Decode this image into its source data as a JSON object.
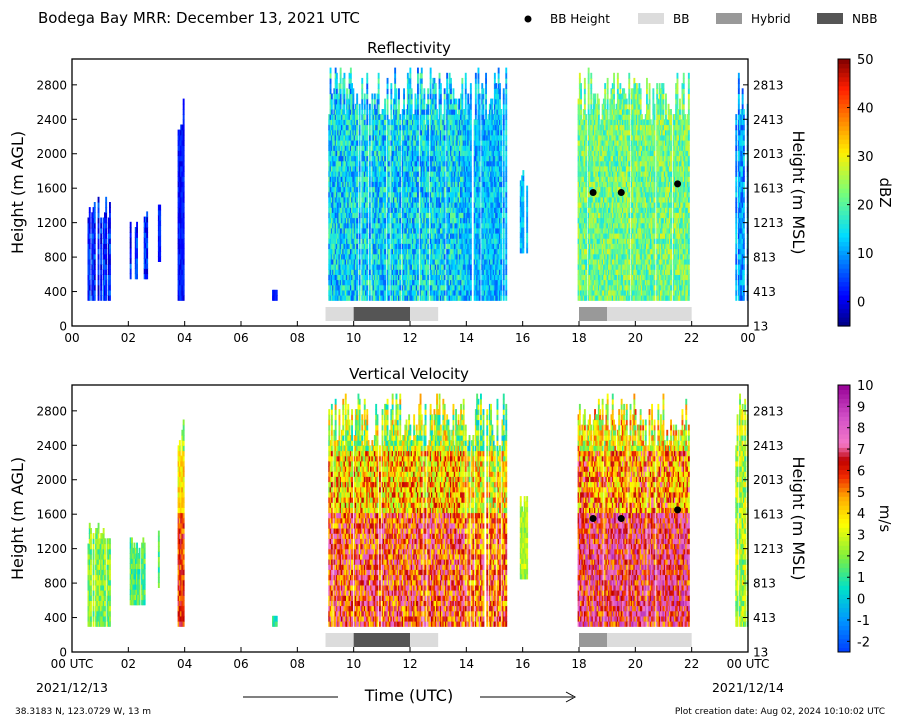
{
  "header": {
    "title": "Bodega Bay MRR:  December 13, 2021 UTC",
    "legend": [
      {
        "label": "BB Height",
        "marker": "dot",
        "color": "#000000"
      },
      {
        "label": "BB",
        "marker": "swatch",
        "color": "#dcdcdc"
      },
      {
        "label": "Hybrid",
        "marker": "swatch",
        "color": "#999999"
      },
      {
        "label": "NBB",
        "marker": "swatch",
        "color": "#555555"
      }
    ]
  },
  "footer": {
    "location": "38.3183 N, 123.0729 W, 13 m",
    "creation": "Plot creation date: Aug 02, 2024 10:10:02 UTC",
    "xlabel": "Time (UTC)",
    "start_date": "2021/12/13",
    "end_date": "2021/12/14"
  },
  "chart_data": [
    {
      "type": "heatmap",
      "title": "Reflectivity",
      "ylabel": "Height (m AGL)",
      "ylabel_right": "Height (m MSL)",
      "xlim": [
        0,
        24
      ],
      "ylim": [
        0,
        3100
      ],
      "xticks": [
        "00",
        "02",
        "04",
        "06",
        "08",
        "10",
        "12",
        "14",
        "16",
        "18",
        "20",
        "22",
        "00"
      ],
      "yticks": [
        0,
        400,
        800,
        1200,
        1600,
        2000,
        2400,
        2800
      ],
      "yticks_right": [
        "13",
        "413",
        "813",
        "1213",
        "1613",
        "2013",
        "2413",
        "2813"
      ],
      "colorbar": {
        "label": "dBZ",
        "range": [
          -5,
          50
        ],
        "ticks": [
          "0",
          "10",
          "20",
          "30",
          "40",
          "50"
        ],
        "tick_values": [
          0,
          10,
          20,
          30,
          40,
          50
        ],
        "colormap": "jet"
      },
      "bb_height_points": [
        {
          "time": 18.5,
          "height": 1550
        },
        {
          "time": 19.5,
          "height": 1550
        },
        {
          "time": 21.5,
          "height": 1650
        }
      ],
      "bb_classification": [
        {
          "start": 9.0,
          "end": 10.0,
          "class": "BB"
        },
        {
          "start": 10.0,
          "end": 12.0,
          "class": "NBB"
        },
        {
          "start": 12.0,
          "end": 13.0,
          "class": "BB"
        },
        {
          "start": 18.0,
          "end": 19.0,
          "class": "Hybrid"
        },
        {
          "start": 19.0,
          "end": 22.0,
          "class": "BB"
        }
      ]
    },
    {
      "type": "heatmap",
      "title": "Vertical Velocity",
      "ylabel": "Height (m AGL)",
      "ylabel_right": "Height (m MSL)",
      "xlim": [
        0,
        24
      ],
      "ylim": [
        0,
        3100
      ],
      "xticks": [
        "00 UTC",
        "02",
        "04",
        "06",
        "08",
        "10",
        "12",
        "14",
        "16",
        "18",
        "20",
        "22",
        "00 UTC"
      ],
      "yticks": [
        0,
        400,
        800,
        1200,
        1600,
        2000,
        2400,
        2800
      ],
      "yticks_right": [
        "13",
        "413",
        "813",
        "1213",
        "1613",
        "2013",
        "2413",
        "2813"
      ],
      "colorbar": {
        "label": "m/s",
        "range": [
          -2.5,
          10
        ],
        "ticks": [
          "-2",
          "-1",
          "0",
          "1",
          "2",
          "3",
          "4",
          "5",
          "6",
          "7",
          "8",
          "9",
          "10"
        ],
        "tick_values": [
          -2,
          -1,
          0,
          1,
          2,
          3,
          4,
          5,
          6,
          7,
          8,
          9,
          10
        ],
        "colormap": "velocity"
      },
      "bb_height_points": [
        {
          "time": 18.5,
          "height": 1550
        },
        {
          "time": 19.5,
          "height": 1550
        },
        {
          "time": 21.5,
          "height": 1650
        }
      ],
      "bb_classification": [
        {
          "start": 9.0,
          "end": 10.0,
          "class": "BB"
        },
        {
          "start": 10.0,
          "end": 12.0,
          "class": "NBB"
        },
        {
          "start": 12.0,
          "end": 13.0,
          "class": "BB"
        },
        {
          "start": 18.0,
          "end": 19.0,
          "class": "Hybrid"
        },
        {
          "start": 19.0,
          "end": 22.0,
          "class": "BB"
        }
      ]
    }
  ]
}
